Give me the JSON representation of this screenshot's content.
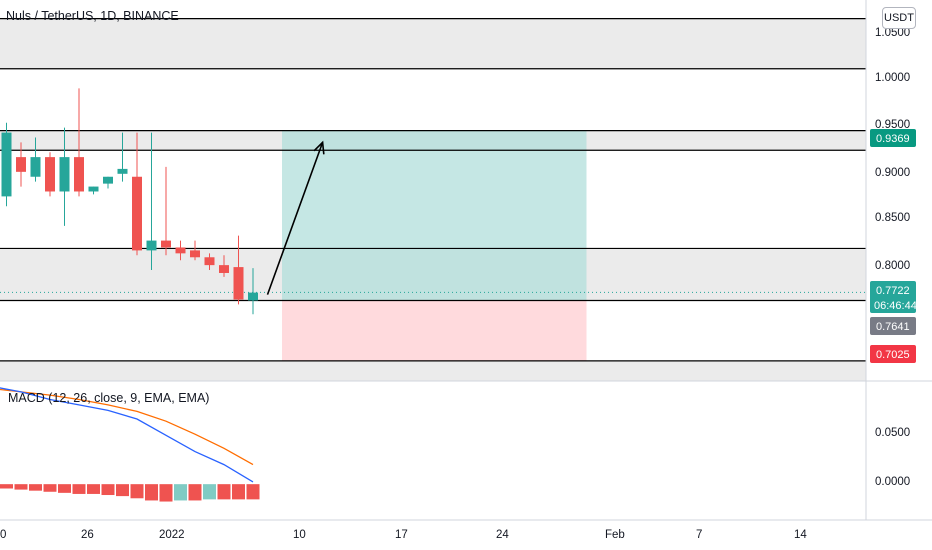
{
  "header": {
    "symbol_title": "Nuls / TetherUS, 1D, BINANCE",
    "currency_button": "USDT"
  },
  "macd": {
    "title": "MACD (12, 26, close, 9, EMA, EMA)",
    "y_ticks": [
      "0.0500",
      "0.0000"
    ]
  },
  "price_axis": {
    "ticks": [
      "1.0500",
      "1.0000",
      "0.9500",
      "0.9000",
      "0.8500",
      "0.8000"
    ],
    "tick_values": [
      1.05,
      1.0,
      0.95,
      0.9,
      0.85,
      0.8
    ],
    "ylim": [
      0.682,
      1.07
    ],
    "badges": {
      "target": {
        "text": "0.9369",
        "value": 0.9369,
        "color": "#089981"
      },
      "last": {
        "text": "0.7722",
        "value": 0.7722,
        "color": "#26a69a"
      },
      "countdown": {
        "text": "06:46:44",
        "color": "#26a69a"
      },
      "entry": {
        "text": "0.7641",
        "value": 0.7641,
        "color": "#787b86"
      },
      "stop": {
        "text": "0.7025",
        "value": 0.7025,
        "color": "#f23645"
      }
    }
  },
  "time_axis": {
    "labels": [
      "0",
      "26",
      "2022",
      "10",
      "17",
      "24",
      "Feb",
      "7",
      "14"
    ],
    "label_days": [
      -11,
      -5,
      0,
      9,
      16,
      23,
      31,
      37,
      44
    ]
  },
  "colors": {
    "up": "#26a69a",
    "down": "#ef5350",
    "macd_line": "#2962ff",
    "signal_line": "#ff6d00",
    "profit_zone": "#b2dfdb",
    "loss_zone": "#ffcdd2",
    "band": "#ebebeb"
  },
  "chart_data": {
    "type": "candlestick",
    "title": "Nuls / TetherUS, 1D, BINANCE",
    "x_unit": "days relative to 2022-01-01",
    "candles": [
      {
        "d": -12,
        "o": 0.95,
        "h": 0.98,
        "l": 0.86,
        "c": 0.92
      },
      {
        "d": -11,
        "o": 0.87,
        "h": 0.945,
        "l": 0.86,
        "c": 0.935
      },
      {
        "d": -10,
        "o": 0.91,
        "h": 0.925,
        "l": 0.88,
        "c": 0.895
      },
      {
        "d": -9,
        "o": 0.89,
        "h": 0.93,
        "l": 0.885,
        "c": 0.91
      },
      {
        "d": -8,
        "o": 0.91,
        "h": 0.915,
        "l": 0.87,
        "c": 0.875
      },
      {
        "d": -7,
        "o": 0.875,
        "h": 0.94,
        "l": 0.84,
        "c": 0.91
      },
      {
        "d": -6,
        "o": 0.91,
        "h": 0.98,
        "l": 0.87,
        "c": 0.875
      },
      {
        "d": -5,
        "o": 0.875,
        "h": 0.88,
        "l": 0.872,
        "c": 0.88
      },
      {
        "d": -4,
        "o": 0.883,
        "h": 0.89,
        "l": 0.878,
        "c": 0.89
      },
      {
        "d": -3,
        "o": 0.893,
        "h": 0.935,
        "l": 0.885,
        "c": 0.898
      },
      {
        "d": -2,
        "o": 0.89,
        "h": 0.935,
        "l": 0.81,
        "c": 0.815
      },
      {
        "d": -1,
        "o": 0.815,
        "h": 0.935,
        "l": 0.795,
        "c": 0.825
      },
      {
        "d": 0,
        "o": 0.825,
        "h": 0.9,
        "l": 0.81,
        "c": 0.818
      },
      {
        "d": 1,
        "o": 0.818,
        "h": 0.825,
        "l": 0.805,
        "c": 0.812
      },
      {
        "d": 2,
        "o": 0.815,
        "h": 0.825,
        "l": 0.805,
        "c": 0.808
      },
      {
        "d": 3,
        "o": 0.808,
        "h": 0.812,
        "l": 0.795,
        "c": 0.8
      },
      {
        "d": 4,
        "o": 0.8,
        "h": 0.81,
        "l": 0.788,
        "c": 0.792
      },
      {
        "d": 5,
        "o": 0.798,
        "h": 0.83,
        "l": 0.76,
        "c": 0.765
      },
      {
        "d": 6,
        "o": 0.764,
        "h": 0.797,
        "l": 0.75,
        "c": 0.772
      }
    ],
    "horizontal_lines": [
      1.051,
      1.0,
      0.937,
      0.917,
      0.817,
      0.764,
      0.7025
    ],
    "grey_bands": [
      [
        1.0,
        1.051
      ],
      [
        0.917,
        0.937
      ],
      [
        0.764,
        0.817
      ],
      [
        0.682,
        0.7025
      ]
    ],
    "last_price_line": 0.7722,
    "position": {
      "entry": 0.7641,
      "target": 0.9369,
      "stop": 0.7025,
      "start_day": 8,
      "end_day": 29
    },
    "arrow": {
      "from_day": 7,
      "from_price": 0.77,
      "to_day": 10.8,
      "to_price": 0.925
    },
    "macd": {
      "hist_zero_label": "0.0000",
      "histogram": [
        {
          "d": -12,
          "v": -0.002
        },
        {
          "d": -11,
          "v": -0.004
        },
        {
          "d": -10,
          "v": -0.005
        },
        {
          "d": -9,
          "v": -0.006
        },
        {
          "d": -8,
          "v": -0.007
        },
        {
          "d": -7,
          "v": -0.008
        },
        {
          "d": -6,
          "v": -0.009
        },
        {
          "d": -5,
          "v": -0.009
        },
        {
          "d": -4,
          "v": -0.01
        },
        {
          "d": -3,
          "v": -0.011
        },
        {
          "d": -2,
          "v": -0.013
        },
        {
          "d": -1,
          "v": -0.015
        },
        {
          "d": 0,
          "v": -0.016
        },
        {
          "d": 1,
          "v": -0.015
        },
        {
          "d": 2,
          "v": -0.015
        },
        {
          "d": 3,
          "v": -0.014
        },
        {
          "d": 4,
          "v": -0.014
        },
        {
          "d": 5,
          "v": -0.014
        },
        {
          "d": 6,
          "v": -0.014
        }
      ],
      "macd_line": [
        {
          "d": -12,
          "v": 0.09
        },
        {
          "d": -10,
          "v": 0.085
        },
        {
          "d": -8,
          "v": 0.078
        },
        {
          "d": -6,
          "v": 0.073
        },
        {
          "d": -4,
          "v": 0.068
        },
        {
          "d": -2,
          "v": 0.06
        },
        {
          "d": 0,
          "v": 0.045
        },
        {
          "d": 2,
          "v": 0.03
        },
        {
          "d": 4,
          "v": 0.018
        },
        {
          "d": 6,
          "v": 0.002
        }
      ],
      "signal_line": [
        {
          "d": -12,
          "v": 0.088
        },
        {
          "d": -10,
          "v": 0.085
        },
        {
          "d": -8,
          "v": 0.082
        },
        {
          "d": -6,
          "v": 0.078
        },
        {
          "d": -4,
          "v": 0.073
        },
        {
          "d": -2,
          "v": 0.067
        },
        {
          "d": 0,
          "v": 0.058
        },
        {
          "d": 2,
          "v": 0.046
        },
        {
          "d": 4,
          "v": 0.033
        },
        {
          "d": 6,
          "v": 0.018
        }
      ],
      "ylim": [
        -0.033,
        0.095
      ]
    }
  }
}
